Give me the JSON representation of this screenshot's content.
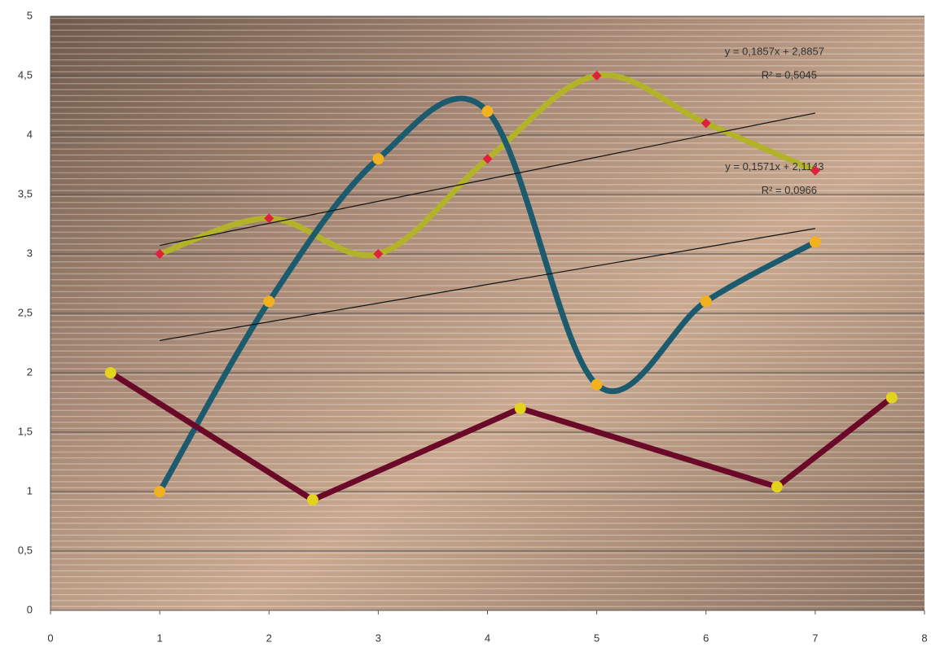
{
  "chart_data": {
    "type": "scatter",
    "smooth": true,
    "xlim": [
      0,
      8
    ],
    "xticks": [
      0,
      1,
      2,
      3,
      4,
      5,
      6,
      7,
      8
    ],
    "ylim": [
      0,
      5
    ],
    "yticks": [
      0,
      {
        "value": 0.5,
        "label": "0,5"
      },
      1,
      {
        "value": 1.5,
        "label": "1,5"
      },
      2,
      {
        "value": 2.5,
        "label": "2,5"
      },
      3,
      {
        "value": 3.5,
        "label": "3,5"
      },
      4,
      {
        "value": 4.5,
        "label": "4,5"
      },
      5
    ],
    "grid": true,
    "series": [
      {
        "color": "#b3b32a",
        "marker": "diamond",
        "marker_color": "#e0203c",
        "smooth": true,
        "x": [
          1,
          2,
          3,
          4,
          5,
          6,
          7
        ],
        "values": [
          3,
          3.3,
          3,
          3.8,
          4.5,
          4.1,
          3.7
        ]
      },
      {
        "color": "#1c5b6e",
        "marker": "circle",
        "marker_color": "#f2b11e",
        "smooth": true,
        "x": [
          1,
          2,
          3,
          4,
          5,
          6,
          7
        ],
        "values": [
          1,
          2.6,
          3.8,
          4.2,
          1.9,
          2.6,
          3.1
        ]
      },
      {
        "color": "#6a0a28",
        "marker": "circle",
        "marker_color": "#e2d41c",
        "smooth": false,
        "x": [
          0.55,
          2.4,
          4.3,
          6.65,
          7.7
        ],
        "values": [
          2.0,
          0.93,
          1.7,
          1.04,
          1.79
        ]
      }
    ],
    "trendlines": [
      {
        "series": 0,
        "slope": 0.1857,
        "intercept": 2.8857,
        "equation": "y = 0,1857x + 2,8857",
        "r2": "R² = 0,5045"
      },
      {
        "series": 1,
        "slope": 0.1571,
        "intercept": 2.1143,
        "equation": "y = 0,1571x + 2,1143",
        "r2": "R² = 0,0966"
      }
    ]
  }
}
